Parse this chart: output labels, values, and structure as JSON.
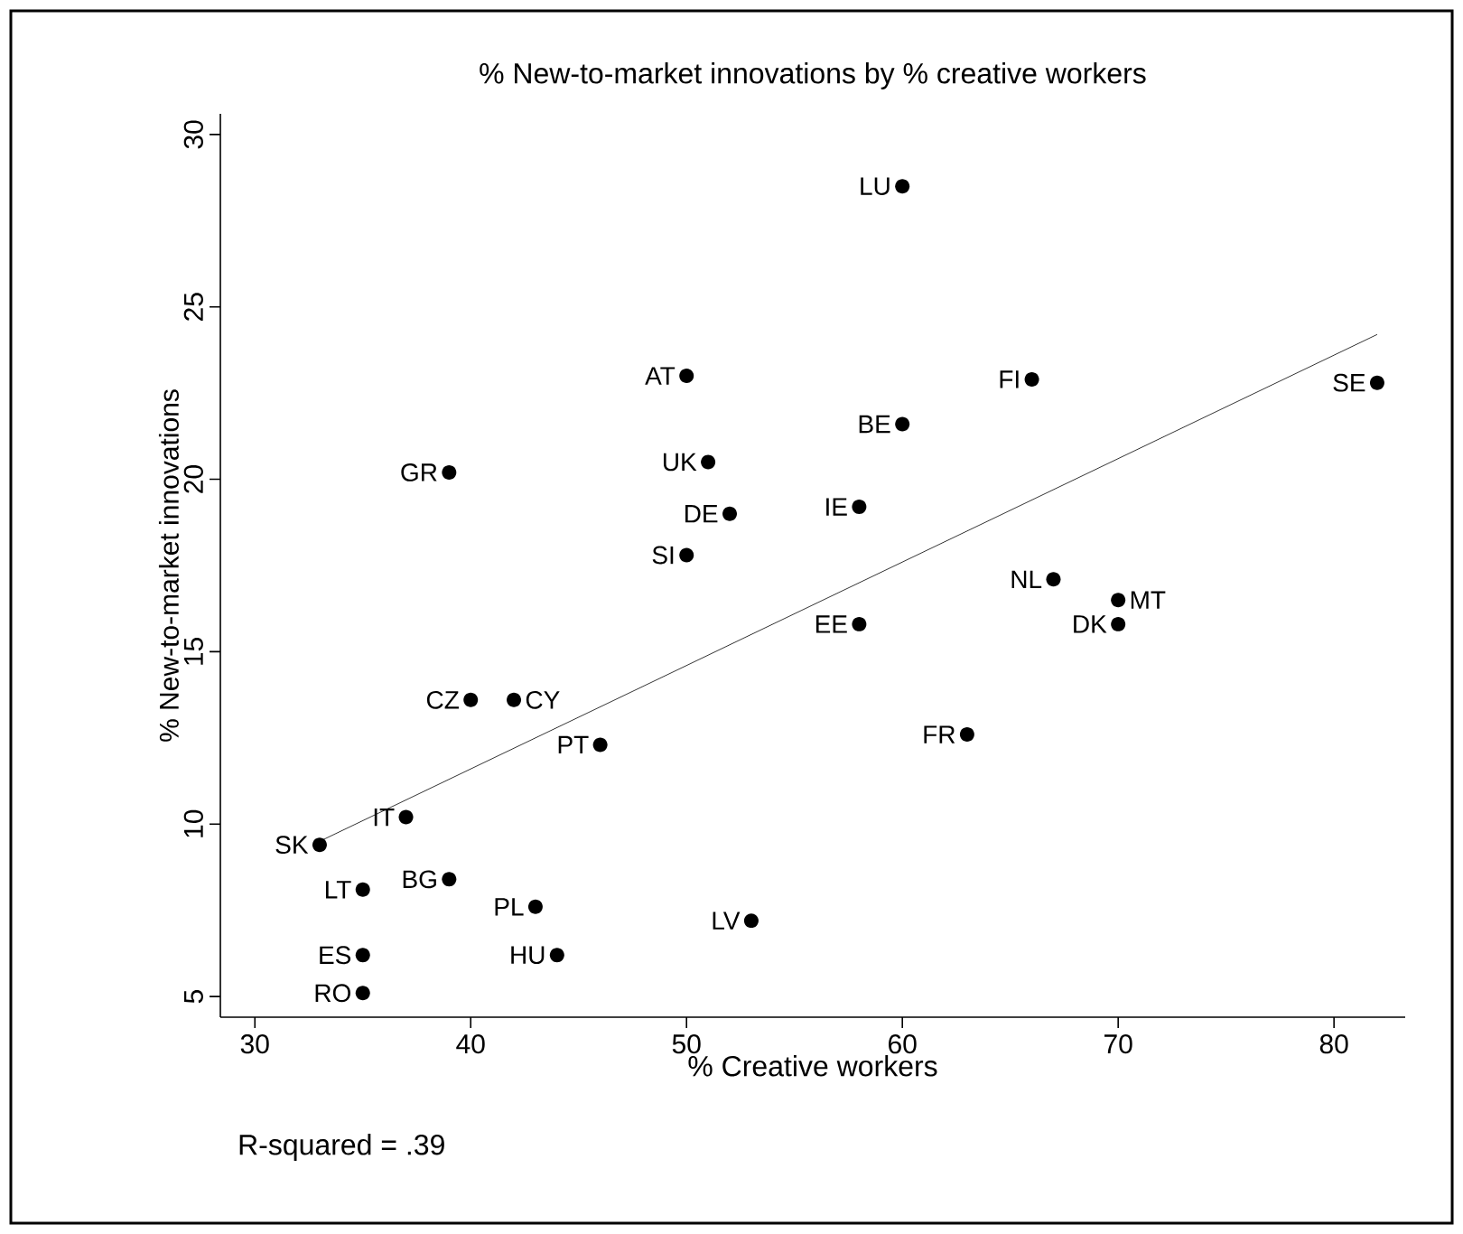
{
  "chart_data": {
    "type": "scatter",
    "title": "% New-to-market innovations by % creative workers",
    "xlabel": "% Creative workers",
    "ylabel": "% New-to-market innovations",
    "xlim": [
      28.4,
      83.3
    ],
    "ylim": [
      4.4,
      30.6
    ],
    "xticks": [
      30,
      40,
      50,
      60,
      70,
      80
    ],
    "yticks": [
      5,
      10,
      15,
      20,
      25,
      30
    ],
    "marker": "circle",
    "series": [
      {
        "color": "#000000",
        "x": [
          39,
          50,
          51,
          52,
          50,
          60,
          66,
          82,
          60,
          58,
          40,
          42,
          46,
          37,
          33,
          35,
          39,
          43,
          44,
          35,
          35,
          53,
          58,
          67,
          70,
          70,
          63
        ],
        "values": [
          20.2,
          23.0,
          20.5,
          19.0,
          17.8,
          28.5,
          22.9,
          22.8,
          21.6,
          19.2,
          13.6,
          13.6,
          12.3,
          10.2,
          9.4,
          8.1,
          8.4,
          7.6,
          6.2,
          6.2,
          5.1,
          7.2,
          15.8,
          17.1,
          16.5,
          15.8,
          12.6
        ]
      },
      {
        "type": "line",
        "marker": "none",
        "color": "#000000",
        "x": [
          33,
          82
        ],
        "values": [
          9.5,
          24.2
        ]
      }
    ],
    "annotations": [
      {
        "text": "GR",
        "x": 39,
        "y": 20.2
      },
      {
        "text": "AT",
        "x": 50,
        "y": 23.0
      },
      {
        "text": "UK",
        "x": 51,
        "y": 20.5
      },
      {
        "text": "DE",
        "x": 52,
        "y": 19.0
      },
      {
        "text": "SI",
        "x": 50,
        "y": 17.8
      },
      {
        "text": "LU",
        "x": 60,
        "y": 28.5
      },
      {
        "text": "FI",
        "x": 66,
        "y": 22.9
      },
      {
        "text": "SE",
        "x": 82,
        "y": 22.8
      },
      {
        "text": "BE",
        "x": 60,
        "y": 21.6
      },
      {
        "text": "IE",
        "x": 58,
        "y": 19.2
      },
      {
        "text": "CZ",
        "x": 40,
        "y": 13.6
      },
      {
        "text": "CY",
        "x": 42,
        "y": 13.6
      },
      {
        "text": "PT",
        "x": 46,
        "y": 12.3
      },
      {
        "text": "IT",
        "x": 37,
        "y": 10.2
      },
      {
        "text": "SK",
        "x": 33,
        "y": 9.4
      },
      {
        "text": "LT",
        "x": 35,
        "y": 8.1
      },
      {
        "text": "BG",
        "x": 39,
        "y": 8.4
      },
      {
        "text": "PL",
        "x": 43,
        "y": 7.6
      },
      {
        "text": "HU",
        "x": 44,
        "y": 6.2
      },
      {
        "text": "ES",
        "x": 35,
        "y": 6.2
      },
      {
        "text": "RO",
        "x": 35,
        "y": 5.1
      },
      {
        "text": "LV",
        "x": 53,
        "y": 7.2
      },
      {
        "text": "EE",
        "x": 58,
        "y": 15.8
      },
      {
        "text": "NL",
        "x": 67,
        "y": 17.1
      },
      {
        "text": "MT",
        "x": 70,
        "y": 16.5
      },
      {
        "text": "DK",
        "x": 70,
        "y": 15.8
      },
      {
        "text": "FR",
        "x": 63,
        "y": 12.6
      },
      "R-squared = .39"
    ]
  }
}
